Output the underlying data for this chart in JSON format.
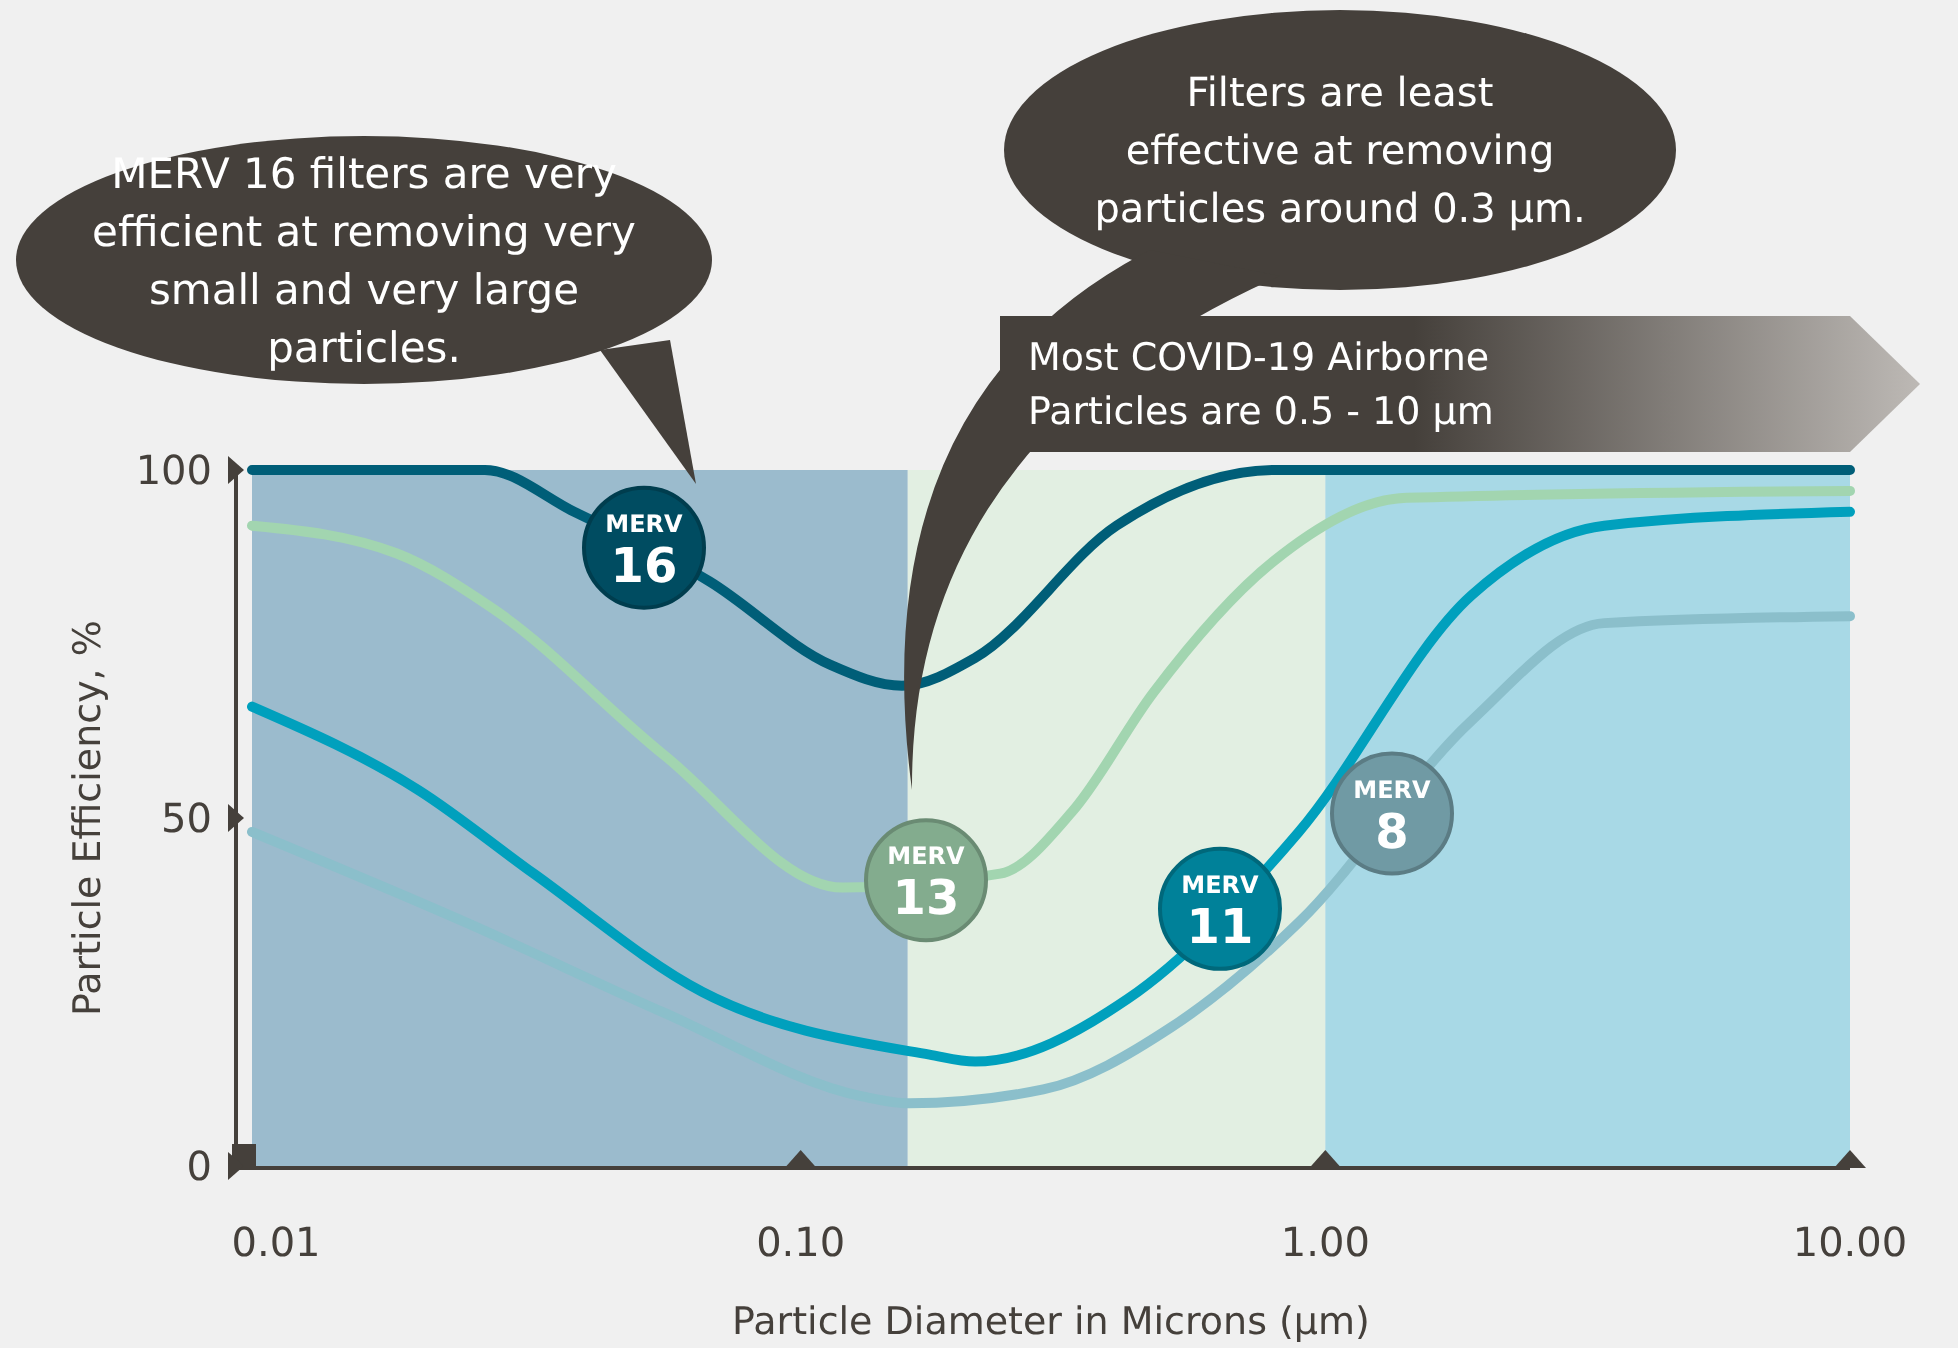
{
  "chart_data": {
    "type": "line",
    "xlabel": "Particle Diameter in Microns (µm)",
    "ylabel": "Particle Efficiency, %",
    "log": "x",
    "xlim": [
      0.009,
      10
    ],
    "xticks": [
      {
        "value": 0.01,
        "label": "0.01"
      },
      {
        "value": 0.1,
        "label": "0.10"
      },
      {
        "value": 1,
        "label": "1.00"
      },
      {
        "value": 10,
        "label": "10.00"
      }
    ],
    "ylim": [
      0,
      100
    ],
    "yticks": [
      0,
      50,
      100
    ],
    "grid": false,
    "legend": false,
    "marker": "none",
    "line_style": "solid",
    "x": [
      0.009,
      0.025,
      0.037,
      0.067,
      0.114,
      0.156,
      0.215,
      0.4,
      0.8,
      10
    ],
    "series": [
      {
        "name": "MERV 16",
        "color": "#005e78",
        "values": [
          100,
          100,
          94,
          84,
          72,
          69,
          73,
          92,
          100,
          100
        ]
      },
      {
        "name": "MERV 13",
        "color": "#a2d5b0",
        "x": [
          0.009,
          0.017,
          0.026,
          0.055,
          0.12,
          0.24,
          0.33,
          0.47,
          0.8,
          1.43,
          10
        ],
        "values": [
          92,
          88,
          80,
          59,
          40,
          42,
          51,
          68,
          87,
          96,
          97
        ]
      },
      {
        "name": "MERV 11",
        "color": "#00a0bd",
        "x": [
          0.009,
          0.0187,
          0.031,
          0.065,
          0.176,
          0.215,
          0.42,
          0.89,
          1.9,
          3.4,
          10
        ],
        "values": [
          66,
          54,
          42,
          25,
          16,
          15,
          24,
          48,
          82,
          92,
          94
        ]
      },
      {
        "name": "MERV 8",
        "color": "#8bbfcb",
        "x": [
          0.009,
          0.023,
          0.055,
          0.131,
          0.161,
          0.29,
          0.51,
          0.89,
          1.9,
          3.4,
          10
        ],
        "values": [
          48,
          35,
          22,
          10,
          9,
          11,
          20,
          35,
          64,
          78,
          79
        ]
      }
    ],
    "bands": [
      {
        "axis": "x",
        "from": 0.009,
        "to": 0.16,
        "color": "#9bbbcd"
      },
      {
        "axis": "x",
        "from": 0.16,
        "to": 1,
        "color": "#e2efe2"
      },
      {
        "axis": "x",
        "from": 1,
        "to": 10,
        "color": "#a8d9e6"
      }
    ],
    "annotations": [
      "MERV 16 filters are very efficient at removing very small and very large particles.",
      "Filters are least effective at removing particles around 0.3 µm.",
      "Most COVID-19 Airborne Particles are 0.5 - 10 µm"
    ]
  }
}
